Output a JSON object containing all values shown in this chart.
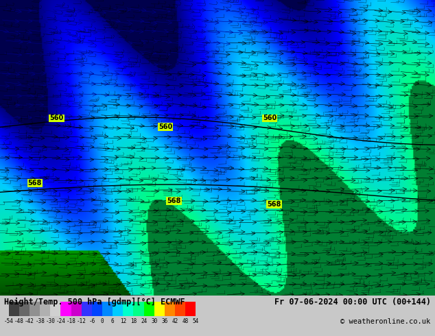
{
  "title_left": "Height/Temp. 500 hPa [gdmp][°C] ECMWF",
  "title_right": "Fr 07-06-2024 00:00 UTC (00+144)",
  "copyright": "© weatheronline.co.uk",
  "colorbar_levels": [
    -54,
    -48,
    -42,
    -38,
    -30,
    -24,
    -18,
    -12,
    -6,
    0,
    6,
    12,
    18,
    24,
    30,
    36,
    42,
    48,
    54
  ],
  "colorbar_colors": [
    "#404040",
    "#606060",
    "#808080",
    "#a0a0a0",
    "#c0c0c0",
    "#ff00ff",
    "#cc00cc",
    "#0000ff",
    "#0044ff",
    "#0088ff",
    "#00ccff",
    "#00ffcc",
    "#00ff88",
    "#00ff00",
    "#ffff00",
    "#ff8800",
    "#ff4400",
    "#ff0000"
  ],
  "bg_color_top": "#000088",
  "bg_color_mid": "#0000ff",
  "bg_color_cyan": "#00ccff",
  "bg_color_green": "#004400",
  "contour_color": "#000000",
  "label_bg": "#ccff00",
  "label_color": "#000000",
  "wind_color": "#000000",
  "fig_width": 6.34,
  "fig_height": 4.9,
  "dpi": 100
}
